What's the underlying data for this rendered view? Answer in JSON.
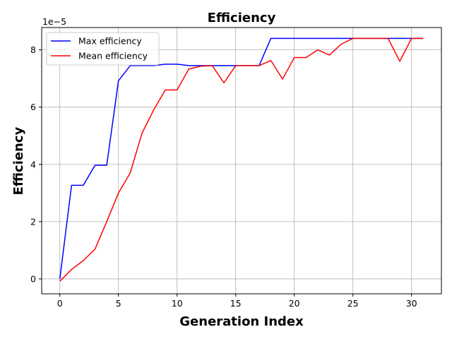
{
  "chart_data": {
    "type": "line",
    "title": "Efficiency",
    "xlabel": "Generation Index",
    "ylabel": "Efficiency",
    "y_multiplier_label": "1e−5",
    "xlim": [
      -1.55,
      32.55
    ],
    "ylim": [
      -0.52,
      8.78
    ],
    "xticks": [
      0,
      5,
      10,
      15,
      20,
      25,
      30
    ],
    "yticks": [
      0,
      2,
      4,
      6,
      8
    ],
    "grid": true,
    "legend_position": "top-left",
    "x": [
      0,
      1,
      2,
      3,
      4,
      5,
      6,
      7,
      8,
      9,
      10,
      11,
      12,
      13,
      14,
      15,
      16,
      17,
      18,
      19,
      20,
      21,
      22,
      23,
      24,
      25,
      26,
      27,
      28,
      29,
      30,
      31
    ],
    "series": [
      {
        "name": "Max efficiency",
        "color": "#0000ff",
        "values": [
          0.0,
          3.27,
          3.27,
          3.97,
          3.97,
          6.92,
          7.45,
          7.45,
          7.45,
          7.5,
          7.5,
          7.45,
          7.45,
          7.45,
          7.45,
          7.45,
          7.45,
          7.45,
          8.4,
          8.4,
          8.4,
          8.4,
          8.4,
          8.4,
          8.4,
          8.4,
          8.4,
          8.4,
          8.4,
          8.4,
          8.4,
          8.4
        ]
      },
      {
        "name": "Mean efficiency",
        "color": "#ff0000",
        "values": [
          -0.08,
          0.33,
          0.64,
          1.04,
          2.0,
          3.0,
          3.7,
          5.08,
          5.9,
          6.6,
          6.6,
          7.33,
          7.43,
          7.45,
          6.85,
          7.45,
          7.45,
          7.45,
          7.63,
          6.98,
          7.73,
          7.73,
          8.0,
          7.82,
          8.2,
          8.4,
          8.4,
          8.4,
          8.4,
          7.6,
          8.4,
          8.4
        ]
      }
    ]
  }
}
